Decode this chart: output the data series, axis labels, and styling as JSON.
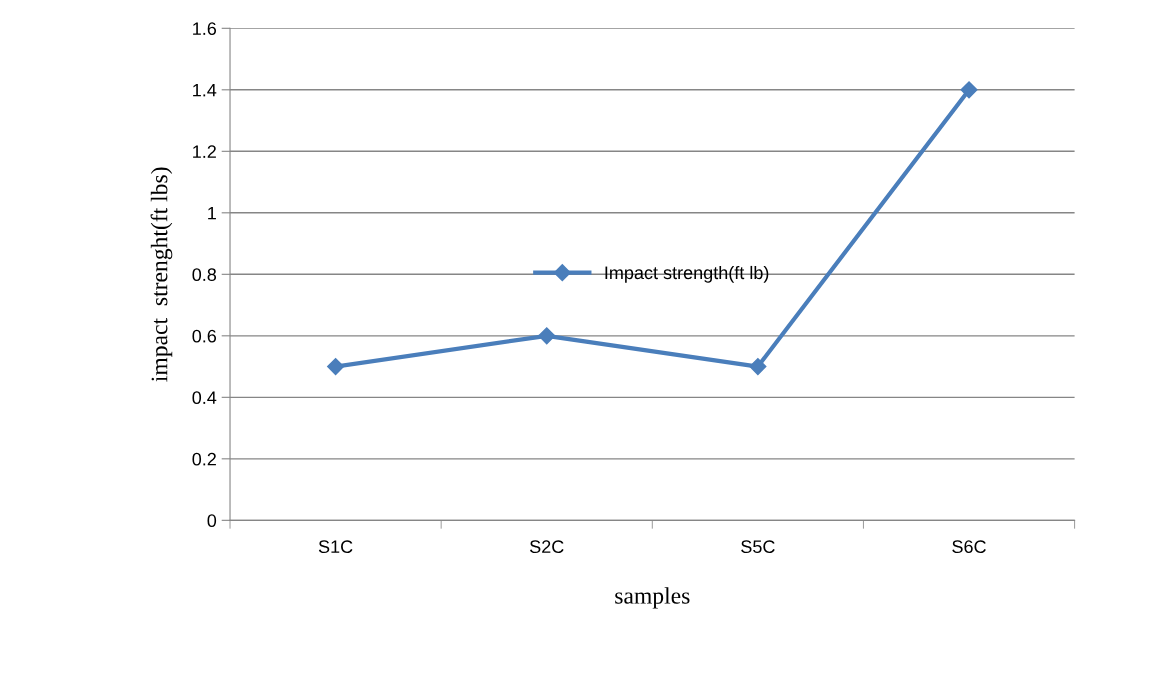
{
  "chart_data": {
    "type": "line",
    "xlabel": "samples",
    "ylabel": "impact  strenght(ft lbs)",
    "categories": [
      "S1C",
      "S2C",
      "S5C",
      "S6C"
    ],
    "series": [
      {
        "name": "Impact strength(ft lb)",
        "color": "#4a7ebb",
        "values": [
          0.5,
          0.6,
          0.5,
          1.4
        ]
      }
    ],
    "ylim": [
      0,
      1.6
    ],
    "yticks": [
      0,
      0.2,
      0.4,
      0.6,
      0.8,
      1,
      1.2,
      1.4,
      1.6
    ],
    "grid": "y",
    "legend": "center",
    "marker": "diamond",
    "line_style": "solid"
  }
}
